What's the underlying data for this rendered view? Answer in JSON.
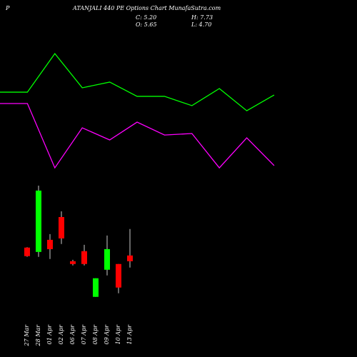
{
  "chart_data": [
    {
      "type": "candlestick",
      "title_parts": [
        "P",
        "ATANJALI 440 PE Options  Chart MunafaSutra.com"
      ],
      "summary": [
        "C: 5.20",
        "H: 7.73",
        "O: 5.65",
        "L: 4.70"
      ],
      "categories": [
        "27 Mar",
        "28 Mar",
        "01 Apr",
        "02 Apr",
        "06 Apr",
        "07 Apr",
        "08 Apr",
        "09 Apr",
        "10 Apr",
        "13 Apr"
      ],
      "open": [
        6.27,
        5.93,
        6.88,
        8.67,
        5.2,
        5.99,
        2.4,
        4.53,
        4.98,
        5.65
      ],
      "high": [
        6.3,
        11.14,
        7.33,
        9.12,
        5.31,
        6.49,
        3.86,
        7.22,
        4.98,
        7.73
      ],
      "low": [
        5.55,
        5.54,
        5.37,
        6.55,
        4.87,
        4.87,
        2.4,
        4.08,
        2.68,
        4.7
      ],
      "close": [
        5.6,
        10.75,
        6.15,
        6.99,
        4.98,
        4.98,
        3.86,
        6.15,
        3.13,
        5.2
      ],
      "up_color": "#00ff00",
      "down_color": "#ff0000",
      "ylim": [
        1.6,
        11.7
      ]
    },
    {
      "type": "line",
      "series": [
        {
          "color": "#00ff00",
          "values": [
            57.6,
            57.6,
            83.3,
            60.5,
            64.3,
            54.8,
            54.8,
            48.6,
            60,
            45.2,
            55.7
          ]
        },
        {
          "color": "#ff00ff",
          "values": [
            50,
            50,
            7.1,
            33.8,
            25.7,
            37.6,
            29,
            30,
            7.1,
            27.1,
            8.6
          ]
        }
      ],
      "ylim": [
        0,
        100
      ]
    }
  ]
}
